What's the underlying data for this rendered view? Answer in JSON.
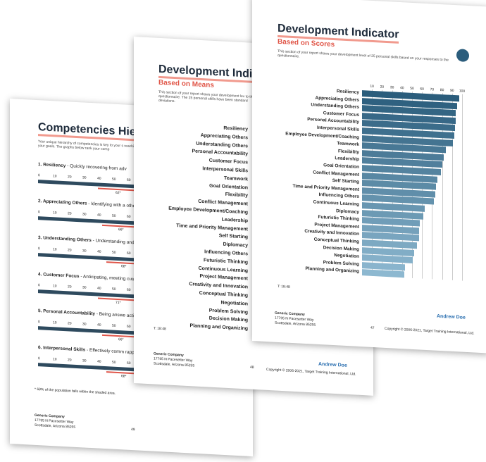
{
  "competencies_page": {
    "title": "Competencies Hier",
    "intro": "Your unique hierarchy of competencies is key to your s reaching your goals. The graphs below rank your comp",
    "scale_ticks": [
      0,
      10,
      20,
      30,
      40,
      50,
      60,
      70
    ],
    "items": [
      {
        "name": "1. Resiliency",
        "desc": " - Quickly recovering from adv",
        "score": "62*"
      },
      {
        "name": "2. Appreciating Others",
        "desc": " - Identifying with a others.",
        "score": "66*"
      },
      {
        "name": "3. Understanding Others",
        "desc": " - Understanding and contributions of others.",
        "score": "68*"
      },
      {
        "name": "4. Customer Focus",
        "desc": " - Anticipating, meeting customer needs, wants and expectations.",
        "score": "71*"
      },
      {
        "name": "5. Personal Accountability",
        "desc": " - Being answe actions.",
        "score": "66*"
      },
      {
        "name": "6. Interpersonal Skills",
        "desc": " - Effectively comm rapport and relating well to all kinds of peo",
        "score": "68*"
      }
    ],
    "footnote": "* 68% of the population falls within the shaded area.",
    "company": "Generic Company",
    "address1": "17795 N Pacesetter Way",
    "address2": "Scottsdale, Arizona 85255",
    "page_number": "49"
  },
  "means_page": {
    "title": "Development Indic",
    "subtitle": "Based on Means",
    "intro": "This section of your report shows your development lev to the questionnaire. The 25 personal skills have been standard deviations.",
    "skills": [
      "Resiliency",
      "Appreciating Others",
      "Understanding Others",
      "Personal Accountability",
      "Customer Focus",
      "Interpersonal Skills",
      "Teamwork",
      "Goal Orientation",
      "Flexibility",
      "Conflict Management",
      "Employee Development/Coaching",
      "Leadership",
      "Time and Priority Management",
      "Self Starting",
      "Diplomacy",
      "Influencing Others",
      "Futuristic Thinking",
      "Continuous Learning",
      "Project Management",
      "Creativity and Innovation",
      "Conceptual Thinking",
      "Negotiation",
      "Problem Solving",
      "Decision Making",
      "Planning and Organizing"
    ],
    "time": "T: 18:48",
    "company": "Generic Company",
    "address1": "17795 N Pacesetter Way",
    "address2": "Scottsdale, Arizona 85255",
    "page_number": "48",
    "person": "Andrew Doe",
    "copyright": "Copyright © 2006-2021, Target Training International, Ltd."
  },
  "scores_page": {
    "title": "Development Indicator",
    "subtitle": "Based on Scores",
    "intro": "This section of your report shows your development level of 25 personal skills based on your responses to the questionnaire.",
    "chart_data": {
      "type": "bar",
      "orientation": "horizontal",
      "xlim": [
        0,
        100
      ],
      "xticks": [
        10,
        20,
        30,
        40,
        50,
        60,
        70,
        80,
        90,
        100
      ],
      "categories": [
        "Resiliency",
        "Appreciating Others",
        "Understanding Others",
        "Customer Focus",
        "Personal Accountability",
        "Interpersonal Skills",
        "Employee Development/Coaching",
        "Teamwork",
        "Flexibility",
        "Leadership",
        "Goal Orientation",
        "Conflict Management",
        "Self Starting",
        "Time and Priority Management",
        "Influencing Others",
        "Continuous Learning",
        "Diplomacy",
        "Futuristic Thinking",
        "Project Management",
        "Creativity and Innovation",
        "Conceptual Thinking",
        "Decision Making",
        "Negotiation",
        "Problem Solving",
        "Planning and Organizing"
      ],
      "values": [
        97,
        95,
        94,
        94,
        93,
        92,
        91,
        84,
        82,
        80,
        79,
        75,
        74,
        73,
        72,
        63,
        61,
        58,
        57,
        57,
        55,
        52,
        51,
        43,
        42
      ],
      "color_dark": "#2b5d7c",
      "color_light": "#8db8d0",
      "grid": true
    },
    "time": "T: 18:48",
    "company": "Generic Company",
    "address1": "17795 N Pacesetter Way",
    "address2": "Scottsdale, Arizona 85255",
    "page_number": "47",
    "person": "Andrew Doe",
    "copyright": "Copyright © 2006-2021, Target Training International, Ltd."
  }
}
